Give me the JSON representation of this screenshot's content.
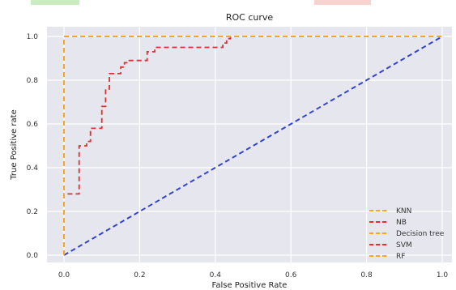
{
  "chart_data": {
    "type": "line",
    "title": "ROC curve",
    "xlabel": "False Positive Rate",
    "ylabel": "True Positive rate",
    "xlim": [
      0,
      1
    ],
    "ylim": [
      0,
      1
    ],
    "xticks": [
      "0.0",
      "0.2",
      "0.4",
      "0.6",
      "0.8",
      "1.0"
    ],
    "yticks": [
      "0.0",
      "0.2",
      "0.4",
      "0.6",
      "0.8",
      "1.0"
    ],
    "grid": true,
    "legend_position": "bottom-right",
    "series": [
      {
        "name": "KNN",
        "color": "#f5a623",
        "style": "dashed",
        "x": [
          0,
          0,
          1
        ],
        "y": [
          0,
          1,
          1
        ]
      },
      {
        "name": "NB",
        "color": "#e03030",
        "style": "dashed",
        "x": [
          0,
          0,
          0.04,
          0.04,
          0.06,
          0.06,
          0.07,
          0.07,
          0.1,
          0.1,
          0.11,
          0.11,
          0.12,
          0.12,
          0.15,
          0.15,
          0.16,
          0.16,
          0.17,
          0.17,
          0.22,
          0.22,
          0.24,
          0.24,
          0.42,
          0.42,
          0.43,
          0.43,
          0.44,
          0.44
        ],
        "y": [
          0,
          0.28,
          0.28,
          0.5,
          0.5,
          0.52,
          0.52,
          0.58,
          0.58,
          0.68,
          0.68,
          0.76,
          0.76,
          0.83,
          0.83,
          0.86,
          0.86,
          0.88,
          0.88,
          0.89,
          0.89,
          0.93,
          0.93,
          0.95,
          0.95,
          0.97,
          0.97,
          0.99,
          0.99,
          1.0
        ]
      },
      {
        "name": "Decision tree",
        "color": "#f5a623",
        "style": "dashed",
        "x": [
          0,
          0,
          1
        ],
        "y": [
          0,
          1,
          1
        ]
      },
      {
        "name": "SVM",
        "color": "#e03030",
        "style": "dashed",
        "x": [],
        "y": []
      },
      {
        "name": "RF",
        "color": "#f5a623",
        "style": "dashed",
        "x": [
          0,
          0,
          1
        ],
        "y": [
          0,
          1,
          1
        ]
      }
    ],
    "reference_line": {
      "color": "#3344cc",
      "style": "dashed",
      "x": [
        0,
        1
      ],
      "y": [
        0,
        1
      ]
    }
  },
  "colors": {
    "plot_background": "#e6e6ef",
    "grid": "#ffffff",
    "top_strip_left": "#b8e6a8",
    "top_strip_right": "#f6c4bc"
  }
}
